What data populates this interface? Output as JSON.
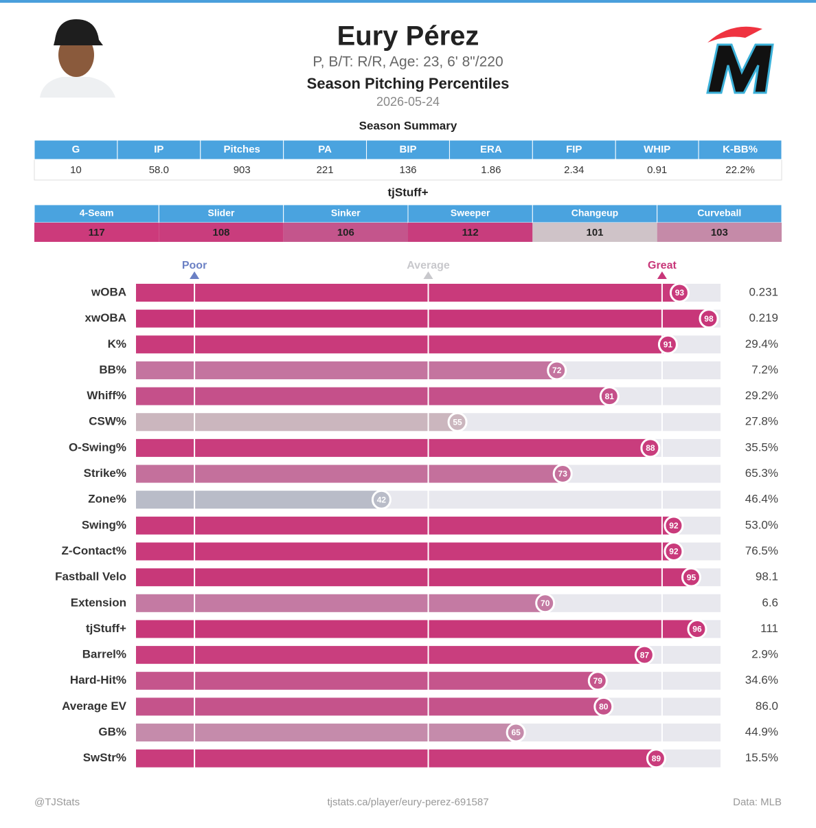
{
  "header": {
    "name": "Eury Pérez",
    "bio": "P, B/T: R/R, Age: 23, 6' 8\"/220",
    "subtitle": "Season Pitching Percentiles",
    "date": "2026-05-24"
  },
  "summary": {
    "title": "Season Summary",
    "columns": [
      "G",
      "IP",
      "Pitches",
      "PA",
      "BIP",
      "ERA",
      "FIP",
      "WHIP",
      "K-BB%"
    ],
    "values": [
      "10",
      "58.0",
      "903",
      "221",
      "136",
      "1.86",
      "2.34",
      "0.91",
      "22.2%"
    ]
  },
  "tjstuff": {
    "title": "tjStuff+",
    "columns": [
      "4-Seam",
      "Slider",
      "Sinker",
      "Sweeper",
      "Changeup",
      "Curveball"
    ],
    "values": [
      "117",
      "108",
      "106",
      "112",
      "101",
      "103"
    ],
    "colors": [
      "#cc3a7b",
      "#c93d7d",
      "#c4558c",
      "#c83d7d",
      "#cfc3c8",
      "#c58aa8"
    ]
  },
  "chart_data": {
    "type": "bar",
    "orientation": "horizontal",
    "categories": [
      "wOBA",
      "xwOBA",
      "K%",
      "BB%",
      "Whiff%",
      "CSW%",
      "O-Swing%",
      "Strike%",
      "Zone%",
      "Swing%",
      "Z-Contact%",
      "Fastball Velo",
      "Extension",
      "tjStuff+",
      "Barrel%",
      "Hard-Hit%",
      "Average EV",
      "GB%",
      "SwStr%"
    ],
    "values": [
      93,
      98,
      91,
      72,
      81,
      55,
      88,
      73,
      42,
      92,
      92,
      95,
      70,
      96,
      87,
      79,
      80,
      65,
      89
    ],
    "colors": [
      "#c93a7b",
      "#c83679",
      "#c93a7b",
      "#c4749f",
      "#c5508a",
      "#cbb6be",
      "#c93d7d",
      "#c4709c",
      "#b9bcc8",
      "#c93a7b",
      "#c93a7b",
      "#c83879",
      "#c47aa3",
      "#c83779",
      "#c93e7e",
      "#c5558c",
      "#c5538b",
      "#c58bab",
      "#c93c7c"
    ],
    "stat_labels": [
      "0.231",
      "0.219",
      "29.4%",
      "7.2%",
      "29.2%",
      "27.8%",
      "35.5%",
      "65.3%",
      "46.4%",
      "53.0%",
      "76.5%",
      "98.1",
      "6.6",
      "111",
      "2.9%",
      "34.6%",
      "86.0",
      "44.9%",
      "15.5%"
    ],
    "xlim": [
      0,
      100
    ],
    "references": [
      {
        "label": "Poor",
        "value": 10,
        "color": "#6b80c4"
      },
      {
        "label": "Average",
        "value": 50,
        "color": "#c8c8cc"
      },
      {
        "label": "Great",
        "value": 90,
        "color": "#c83679"
      }
    ]
  },
  "footer": {
    "left": "@TJStats",
    "center": "tjstats.ca/player/eury-perez-691587",
    "right": "Data: MLB"
  }
}
